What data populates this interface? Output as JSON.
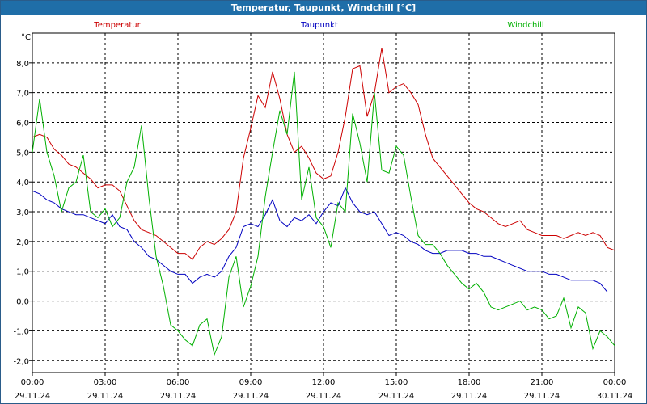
{
  "window": {
    "title": "Temperatur, Taupunkt, Windchill [°C]"
  },
  "chart_data": {
    "type": "line",
    "ylabel": "°C",
    "ylim": [
      -2.4,
      9.0
    ],
    "yticks": [
      "-2,0",
      "-1,0",
      "0,0",
      "1,0",
      "2,0",
      "3,0",
      "4,0",
      "5,0",
      "6,0",
      "7,0",
      "8,0"
    ],
    "xticks": [
      {
        "time": "00:00",
        "date": "29.11.24"
      },
      {
        "time": "03:00",
        "date": "29.11.24"
      },
      {
        "time": "06:00",
        "date": "29.11.24"
      },
      {
        "time": "09:00",
        "date": "29.11.24"
      },
      {
        "time": "12:00",
        "date": "29.11.24"
      },
      {
        "time": "15:00",
        "date": "29.11.24"
      },
      {
        "time": "18:00",
        "date": "29.11.24"
      },
      {
        "time": "21:00",
        "date": "29.11.24"
      },
      {
        "time": "00:00",
        "date": "30.11.24"
      }
    ],
    "xlim_hours": [
      0,
      24
    ],
    "grid": true,
    "legend_position": "top",
    "series": [
      {
        "name": "Temperatur",
        "color": "#cc0000",
        "x": [
          0,
          0.3,
          0.6,
          0.9,
          1.2,
          1.5,
          1.8,
          2.1,
          2.4,
          2.7,
          3.0,
          3.3,
          3.6,
          3.9,
          4.2,
          4.5,
          4.8,
          5.1,
          5.4,
          5.7,
          6.0,
          6.3,
          6.6,
          6.9,
          7.2,
          7.5,
          7.8,
          8.1,
          8.4,
          8.7,
          9.0,
          9.3,
          9.6,
          9.9,
          10.2,
          10.5,
          10.8,
          11.1,
          11.4,
          11.7,
          12.0,
          12.3,
          12.6,
          12.9,
          13.2,
          13.5,
          13.8,
          14.1,
          14.4,
          14.7,
          15.0,
          15.3,
          15.6,
          15.9,
          16.2,
          16.5,
          16.8,
          17.1,
          17.4,
          17.7,
          18.0,
          18.3,
          18.6,
          18.9,
          19.2,
          19.5,
          19.8,
          20.1,
          20.4,
          20.7,
          21.0,
          21.3,
          21.6,
          21.9,
          22.2,
          22.5,
          22.8,
          23.1,
          23.4,
          23.7,
          24.0
        ],
        "y": [
          5.5,
          5.6,
          5.5,
          5.1,
          4.9,
          4.6,
          4.5,
          4.3,
          4.1,
          3.8,
          3.9,
          3.9,
          3.7,
          3.2,
          2.7,
          2.4,
          2.3,
          2.2,
          2.0,
          1.8,
          1.6,
          1.6,
          1.4,
          1.8,
          2.0,
          1.9,
          2.1,
          2.4,
          3.0,
          4.8,
          5.8,
          6.9,
          6.5,
          7.7,
          6.8,
          5.6,
          5.0,
          5.2,
          4.8,
          4.3,
          4.1,
          4.2,
          5.0,
          6.2,
          7.8,
          7.9,
          6.2,
          7.0,
          8.5,
          7.0,
          7.2,
          7.3,
          7.0,
          6.6,
          5.6,
          4.8,
          4.5,
          4.2,
          3.9,
          3.6,
          3.3,
          3.1,
          3.0,
          2.8,
          2.6,
          2.5,
          2.6,
          2.7,
          2.4,
          2.3,
          2.2,
          2.2,
          2.2,
          2.1,
          2.2,
          2.3,
          2.2,
          2.3,
          2.2,
          1.8,
          1.7
        ]
      },
      {
        "name": "Taupunkt",
        "color": "#0000c0",
        "x": [
          0,
          0.3,
          0.6,
          0.9,
          1.2,
          1.5,
          1.8,
          2.1,
          2.4,
          2.7,
          3.0,
          3.3,
          3.6,
          3.9,
          4.2,
          4.5,
          4.8,
          5.1,
          5.4,
          5.7,
          6.0,
          6.3,
          6.6,
          6.9,
          7.2,
          7.5,
          7.8,
          8.1,
          8.4,
          8.7,
          9.0,
          9.3,
          9.6,
          9.9,
          10.2,
          10.5,
          10.8,
          11.1,
          11.4,
          11.7,
          12.0,
          12.3,
          12.6,
          12.9,
          13.2,
          13.5,
          13.8,
          14.1,
          14.4,
          14.7,
          15.0,
          15.3,
          15.6,
          15.9,
          16.2,
          16.5,
          16.8,
          17.1,
          17.4,
          17.7,
          18.0,
          18.3,
          18.6,
          18.9,
          19.2,
          19.5,
          19.8,
          20.1,
          20.4,
          20.7,
          21.0,
          21.3,
          21.6,
          21.9,
          22.2,
          22.5,
          22.8,
          23.1,
          23.4,
          23.7,
          24.0
        ],
        "y": [
          3.7,
          3.6,
          3.4,
          3.3,
          3.1,
          3.0,
          2.9,
          2.9,
          2.8,
          2.7,
          2.6,
          2.9,
          2.5,
          2.4,
          2.0,
          1.8,
          1.5,
          1.4,
          1.2,
          1.0,
          0.9,
          0.9,
          0.6,
          0.8,
          0.9,
          0.8,
          1.0,
          1.5,
          1.8,
          2.5,
          2.6,
          2.5,
          2.9,
          3.4,
          2.7,
          2.5,
          2.8,
          2.7,
          2.9,
          2.6,
          3.0,
          3.3,
          3.2,
          3.8,
          3.3,
          3.0,
          2.9,
          3.0,
          2.6,
          2.2,
          2.3,
          2.2,
          2.0,
          1.9,
          1.7,
          1.6,
          1.6,
          1.7,
          1.7,
          1.7,
          1.6,
          1.6,
          1.5,
          1.5,
          1.4,
          1.3,
          1.2,
          1.1,
          1.0,
          1.0,
          1.0,
          0.9,
          0.9,
          0.8,
          0.7,
          0.7,
          0.7,
          0.7,
          0.6,
          0.3,
          0.3
        ]
      },
      {
        "name": "Windchill",
        "color": "#00b000",
        "x": [
          0,
          0.3,
          0.6,
          0.9,
          1.2,
          1.5,
          1.8,
          2.1,
          2.4,
          2.7,
          3.0,
          3.3,
          3.6,
          3.9,
          4.2,
          4.5,
          4.8,
          5.1,
          5.4,
          5.7,
          6.0,
          6.3,
          6.6,
          6.9,
          7.2,
          7.5,
          7.8,
          8.1,
          8.4,
          8.7,
          9.0,
          9.3,
          9.6,
          9.9,
          10.2,
          10.5,
          10.8,
          11.1,
          11.4,
          11.7,
          12.0,
          12.3,
          12.6,
          12.9,
          13.2,
          13.5,
          13.8,
          14.1,
          14.4,
          14.7,
          15.0,
          15.3,
          15.6,
          15.9,
          16.2,
          16.5,
          16.8,
          17.1,
          17.4,
          17.7,
          18.0,
          18.3,
          18.6,
          18.9,
          19.2,
          19.5,
          19.8,
          20.1,
          20.4,
          20.7,
          21.0,
          21.3,
          21.6,
          21.9,
          22.2,
          22.5,
          22.8,
          23.1,
          23.4,
          23.7,
          24.0
        ],
        "y": [
          5.0,
          6.8,
          5.0,
          4.2,
          3.0,
          3.8,
          4.0,
          4.9,
          3.0,
          2.8,
          3.1,
          2.5,
          2.8,
          4.0,
          4.5,
          5.9,
          3.5,
          1.5,
          0.5,
          -0.8,
          -1.0,
          -1.3,
          -1.5,
          -0.8,
          -0.6,
          -1.8,
          -1.2,
          0.8,
          1.5,
          -0.2,
          0.5,
          1.5,
          3.5,
          5.0,
          6.4,
          5.6,
          7.7,
          3.4,
          4.5,
          2.8,
          2.5,
          1.8,
          3.3,
          3.0,
          6.3,
          5.3,
          4.0,
          7.0,
          4.4,
          4.3,
          5.2,
          4.9,
          3.5,
          2.2,
          1.9,
          1.9,
          1.6,
          1.2,
          0.9,
          0.6,
          0.4,
          0.6,
          0.3,
          -0.2,
          -0.3,
          -0.2,
          -0.1,
          0.0,
          -0.3,
          -0.2,
          -0.3,
          -0.6,
          -0.5,
          0.1,
          -0.9,
          -0.2,
          -0.4,
          -1.6,
          -1.0,
          -1.2,
          -1.5
        ]
      }
    ]
  }
}
